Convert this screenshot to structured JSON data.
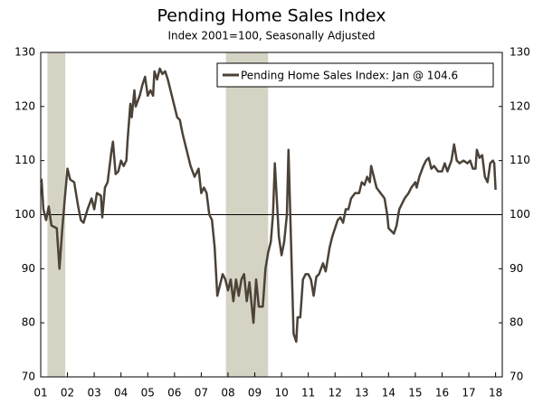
{
  "chart_data": {
    "type": "line",
    "title": "Pending Home Sales Index",
    "subtitle": "Index 2001=100, Seasonally Adjusted",
    "x": [
      2001.0,
      2001.03,
      2001.1,
      2001.2,
      2001.3,
      2001.4,
      2001.6,
      2001.7,
      2001.8,
      2001.9,
      2002.0,
      2002.1,
      2002.25,
      2002.4,
      2002.5,
      2002.6,
      2002.75,
      2002.9,
      2003.0,
      2003.1,
      2003.25,
      2003.3,
      2003.4,
      2003.5,
      2003.65,
      2003.7,
      2003.8,
      2003.9,
      2004.0,
      2004.1,
      2004.2,
      2004.25,
      2004.35,
      2004.4,
      2004.5,
      2004.55,
      2004.7,
      2004.8,
      2004.9,
      2005.0,
      2005.1,
      2005.2,
      2005.25,
      2005.35,
      2005.45,
      2005.55,
      2005.65,
      2005.75,
      2005.85,
      2005.95,
      2006.1,
      2006.2,
      2006.3,
      2006.4,
      2006.5,
      2006.6,
      2006.75,
      2006.9,
      2007.0,
      2007.1,
      2007.2,
      2007.3,
      2007.4,
      2007.5,
      2007.6,
      2007.7,
      2007.8,
      2007.9,
      2008.0,
      2008.1,
      2008.2,
      2008.3,
      2008.4,
      2008.5,
      2008.6,
      2008.7,
      2008.8,
      2008.95,
      2009.05,
      2009.15,
      2009.3,
      2009.4,
      2009.5,
      2009.6,
      2009.68,
      2009.75,
      2009.9,
      2010.0,
      2010.1,
      2010.2,
      2010.26,
      2010.45,
      2010.55,
      2010.6,
      2010.7,
      2010.8,
      2010.9,
      2011.0,
      2011.1,
      2011.2,
      2011.3,
      2011.4,
      2011.55,
      2011.65,
      2011.8,
      2011.9,
      2012.0,
      2012.1,
      2012.2,
      2012.3,
      2012.4,
      2012.5,
      2012.6,
      2012.75,
      2012.9,
      2013.0,
      2013.1,
      2013.2,
      2013.3,
      2013.35,
      2013.45,
      2013.55,
      2013.7,
      2013.85,
      2013.95,
      2014.0,
      2014.1,
      2014.2,
      2014.3,
      2014.4,
      2014.5,
      2014.6,
      2014.75,
      2014.85,
      2015.0,
      2015.05,
      2015.15,
      2015.3,
      2015.4,
      2015.5,
      2015.6,
      2015.7,
      2015.85,
      2016.0,
      2016.1,
      2016.2,
      2016.35,
      2016.45,
      2016.55,
      2016.65,
      2016.8,
      2016.95,
      2017.05,
      2017.15,
      2017.25,
      2017.3,
      2017.4,
      2017.5,
      2017.6,
      2017.7,
      2017.8,
      2017.9,
      2017.95,
      2018.0
    ],
    "series": [
      {
        "name": "Pending Home Sales Index: Jan @ 104.6",
        "color": "#4b4238",
        "values": [
          106,
          106.5,
          101,
          99,
          101.5,
          98,
          97.5,
          90,
          97,
          103,
          108.5,
          106.5,
          106,
          101.5,
          99,
          98.5,
          101,
          103,
          101,
          104,
          103.5,
          99.5,
          105,
          106,
          112,
          113.5,
          107.5,
          108,
          110,
          109,
          110,
          114,
          120.5,
          118,
          123,
          120,
          122,
          124,
          125.5,
          122,
          123,
          122,
          126.5,
          125,
          127,
          126,
          126.5,
          125,
          123,
          121,
          118,
          117.5,
          115,
          113,
          111,
          109,
          107,
          108.5,
          104,
          105,
          104,
          100,
          99,
          94,
          85,
          87,
          89,
          88,
          86,
          88,
          84,
          88,
          85,
          88,
          89,
          84,
          87.5,
          80,
          88,
          83,
          83,
          90,
          93,
          95,
          100,
          109.5,
          96,
          92.5,
          95,
          100,
          112,
          78,
          76.5,
          81,
          81,
          88,
          89,
          89,
          88,
          85,
          88.5,
          89,
          91,
          89.5,
          94,
          96,
          97.5,
          99,
          99.5,
          98.5,
          101,
          101,
          103,
          104,
          104,
          106,
          105.5,
          107,
          106,
          109,
          107,
          105,
          104,
          103,
          100,
          97.5,
          97,
          96.5,
          98,
          101,
          102,
          103,
          104,
          105,
          106,
          105,
          107,
          109,
          110,
          110.5,
          108.5,
          109,
          108,
          108,
          109.5,
          108,
          110,
          113,
          110,
          109.5,
          110,
          109.5,
          110,
          108.5,
          108.5,
          112,
          110.5,
          111,
          107,
          106,
          109.5,
          110,
          109.5,
          104.6
        ]
      }
    ],
    "recessions": [
      [
        2001.25,
        2001.92
      ],
      [
        2007.92,
        2009.5
      ]
    ],
    "recession_color": "#d5d3c3",
    "reference_line": 100,
    "xlim": [
      2001,
      2018.25
    ],
    "xticks": [
      {
        "value": 2001,
        "label": "01"
      },
      {
        "value": 2002,
        "label": "02"
      },
      {
        "value": 2003,
        "label": "03"
      },
      {
        "value": 2004,
        "label": "04"
      },
      {
        "value": 2005,
        "label": "05"
      },
      {
        "value": 2006,
        "label": "06"
      },
      {
        "value": 2007,
        "label": "07"
      },
      {
        "value": 2008,
        "label": "08"
      },
      {
        "value": 2009,
        "label": "09"
      },
      {
        "value": 2010,
        "label": "10"
      },
      {
        "value": 2011,
        "label": "11"
      },
      {
        "value": 2012,
        "label": "12"
      },
      {
        "value": 2013,
        "label": "13"
      },
      {
        "value": 2014,
        "label": "14"
      },
      {
        "value": 2015,
        "label": "15"
      },
      {
        "value": 2016,
        "label": "16"
      },
      {
        "value": 2017,
        "label": "17"
      },
      {
        "value": 2018,
        "label": "18"
      }
    ],
    "ylim": [
      70,
      130
    ],
    "yticks": [
      70,
      80,
      90,
      100,
      110,
      120,
      130
    ],
    "legend": "top-right"
  }
}
